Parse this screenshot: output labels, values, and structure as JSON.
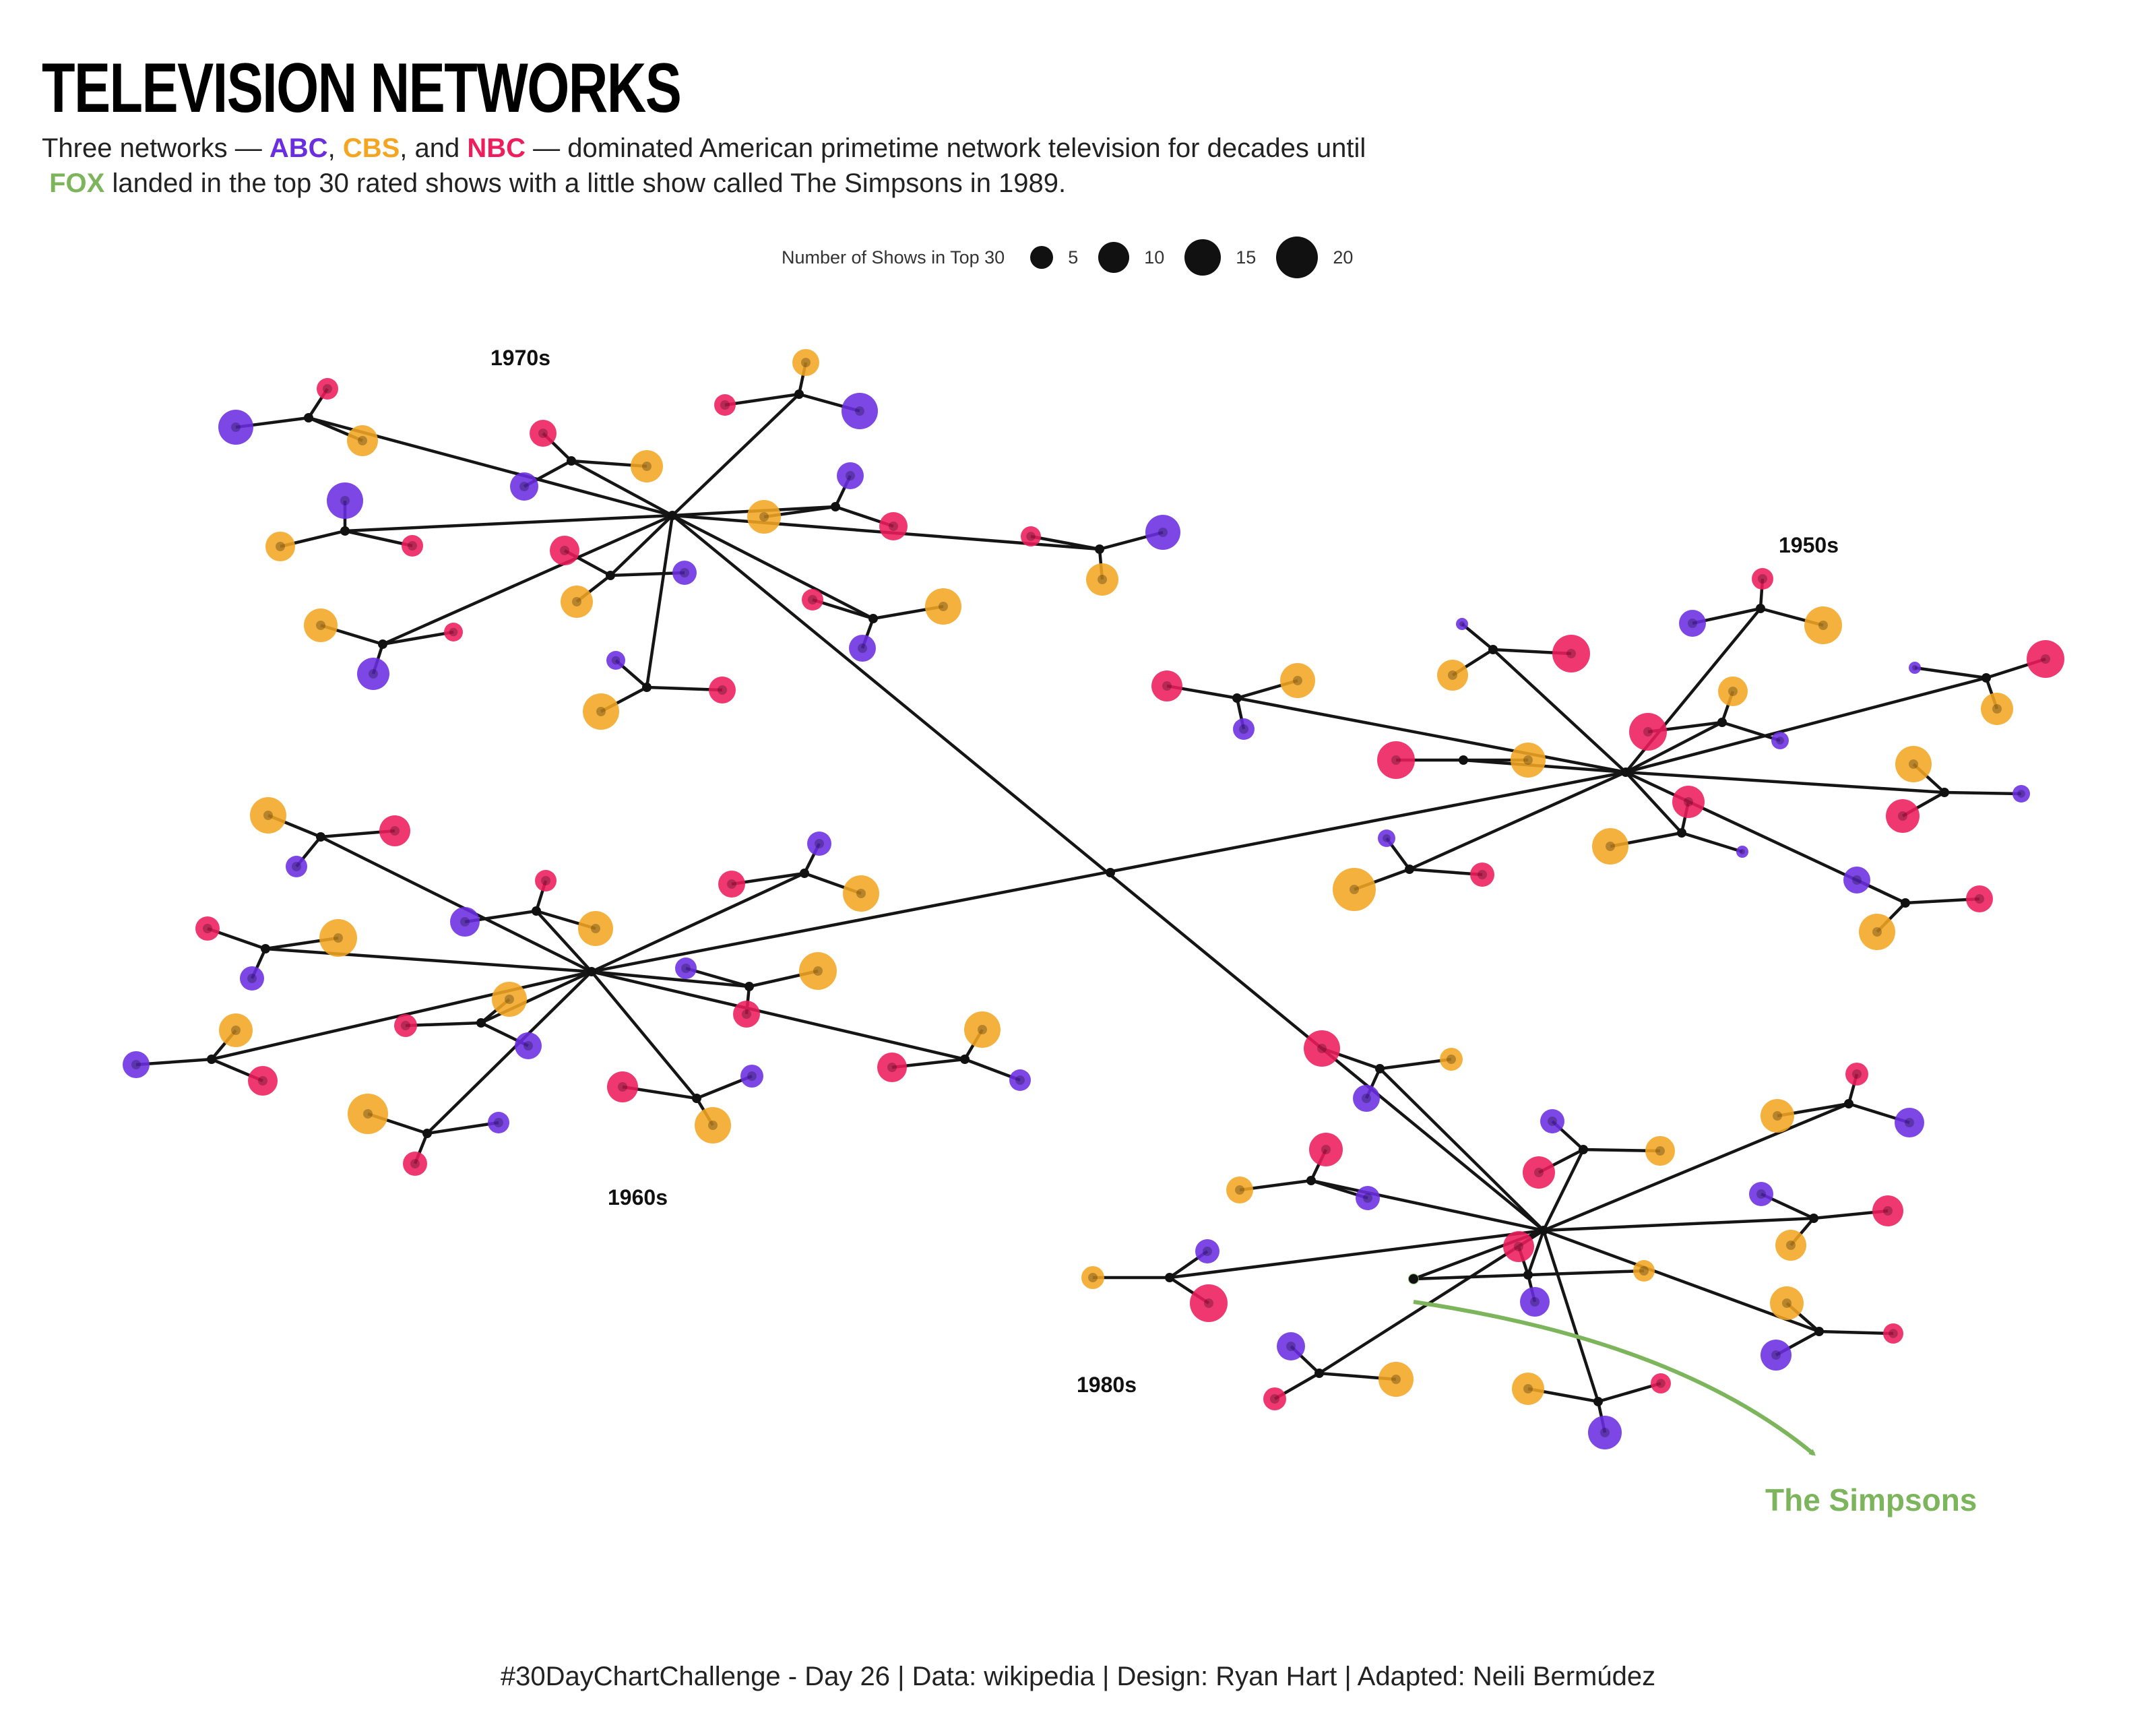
{
  "header": {
    "title": "TELEVISION NETWORKS",
    "subtitle_1": "Three networks —",
    "subtitle_comma_1": ",",
    "subtitle_and": ", and",
    "subtitle_2": "— dominated American primetime network television for decades until",
    "subtitle_3": "landed in the top 30 rated shows with a little show called The Simpsons in 1989."
  },
  "networks": {
    "abc": {
      "label": "ABC",
      "color": "#6a2de0"
    },
    "cbs": {
      "label": "CBS",
      "color": "#f4a623"
    },
    "nbc": {
      "label": "NBC",
      "color": "#ee1d5c"
    },
    "fox": {
      "label": "FOX",
      "color": "#7cb55c"
    }
  },
  "legend": {
    "title": "Number of Shows in Top 30",
    "sizes": [
      "5",
      "10",
      "15",
      "20"
    ]
  },
  "decades": [
    "1950s",
    "1960s",
    "1970s",
    "1980s"
  ],
  "annotation": {
    "label": "The Simpsons",
    "network": "fox"
  },
  "caption": "#30DayChartChallenge - Day 26 | Data: wikipedia | Design: Ryan Hart | Adapted: Neili Bermúdez"
}
